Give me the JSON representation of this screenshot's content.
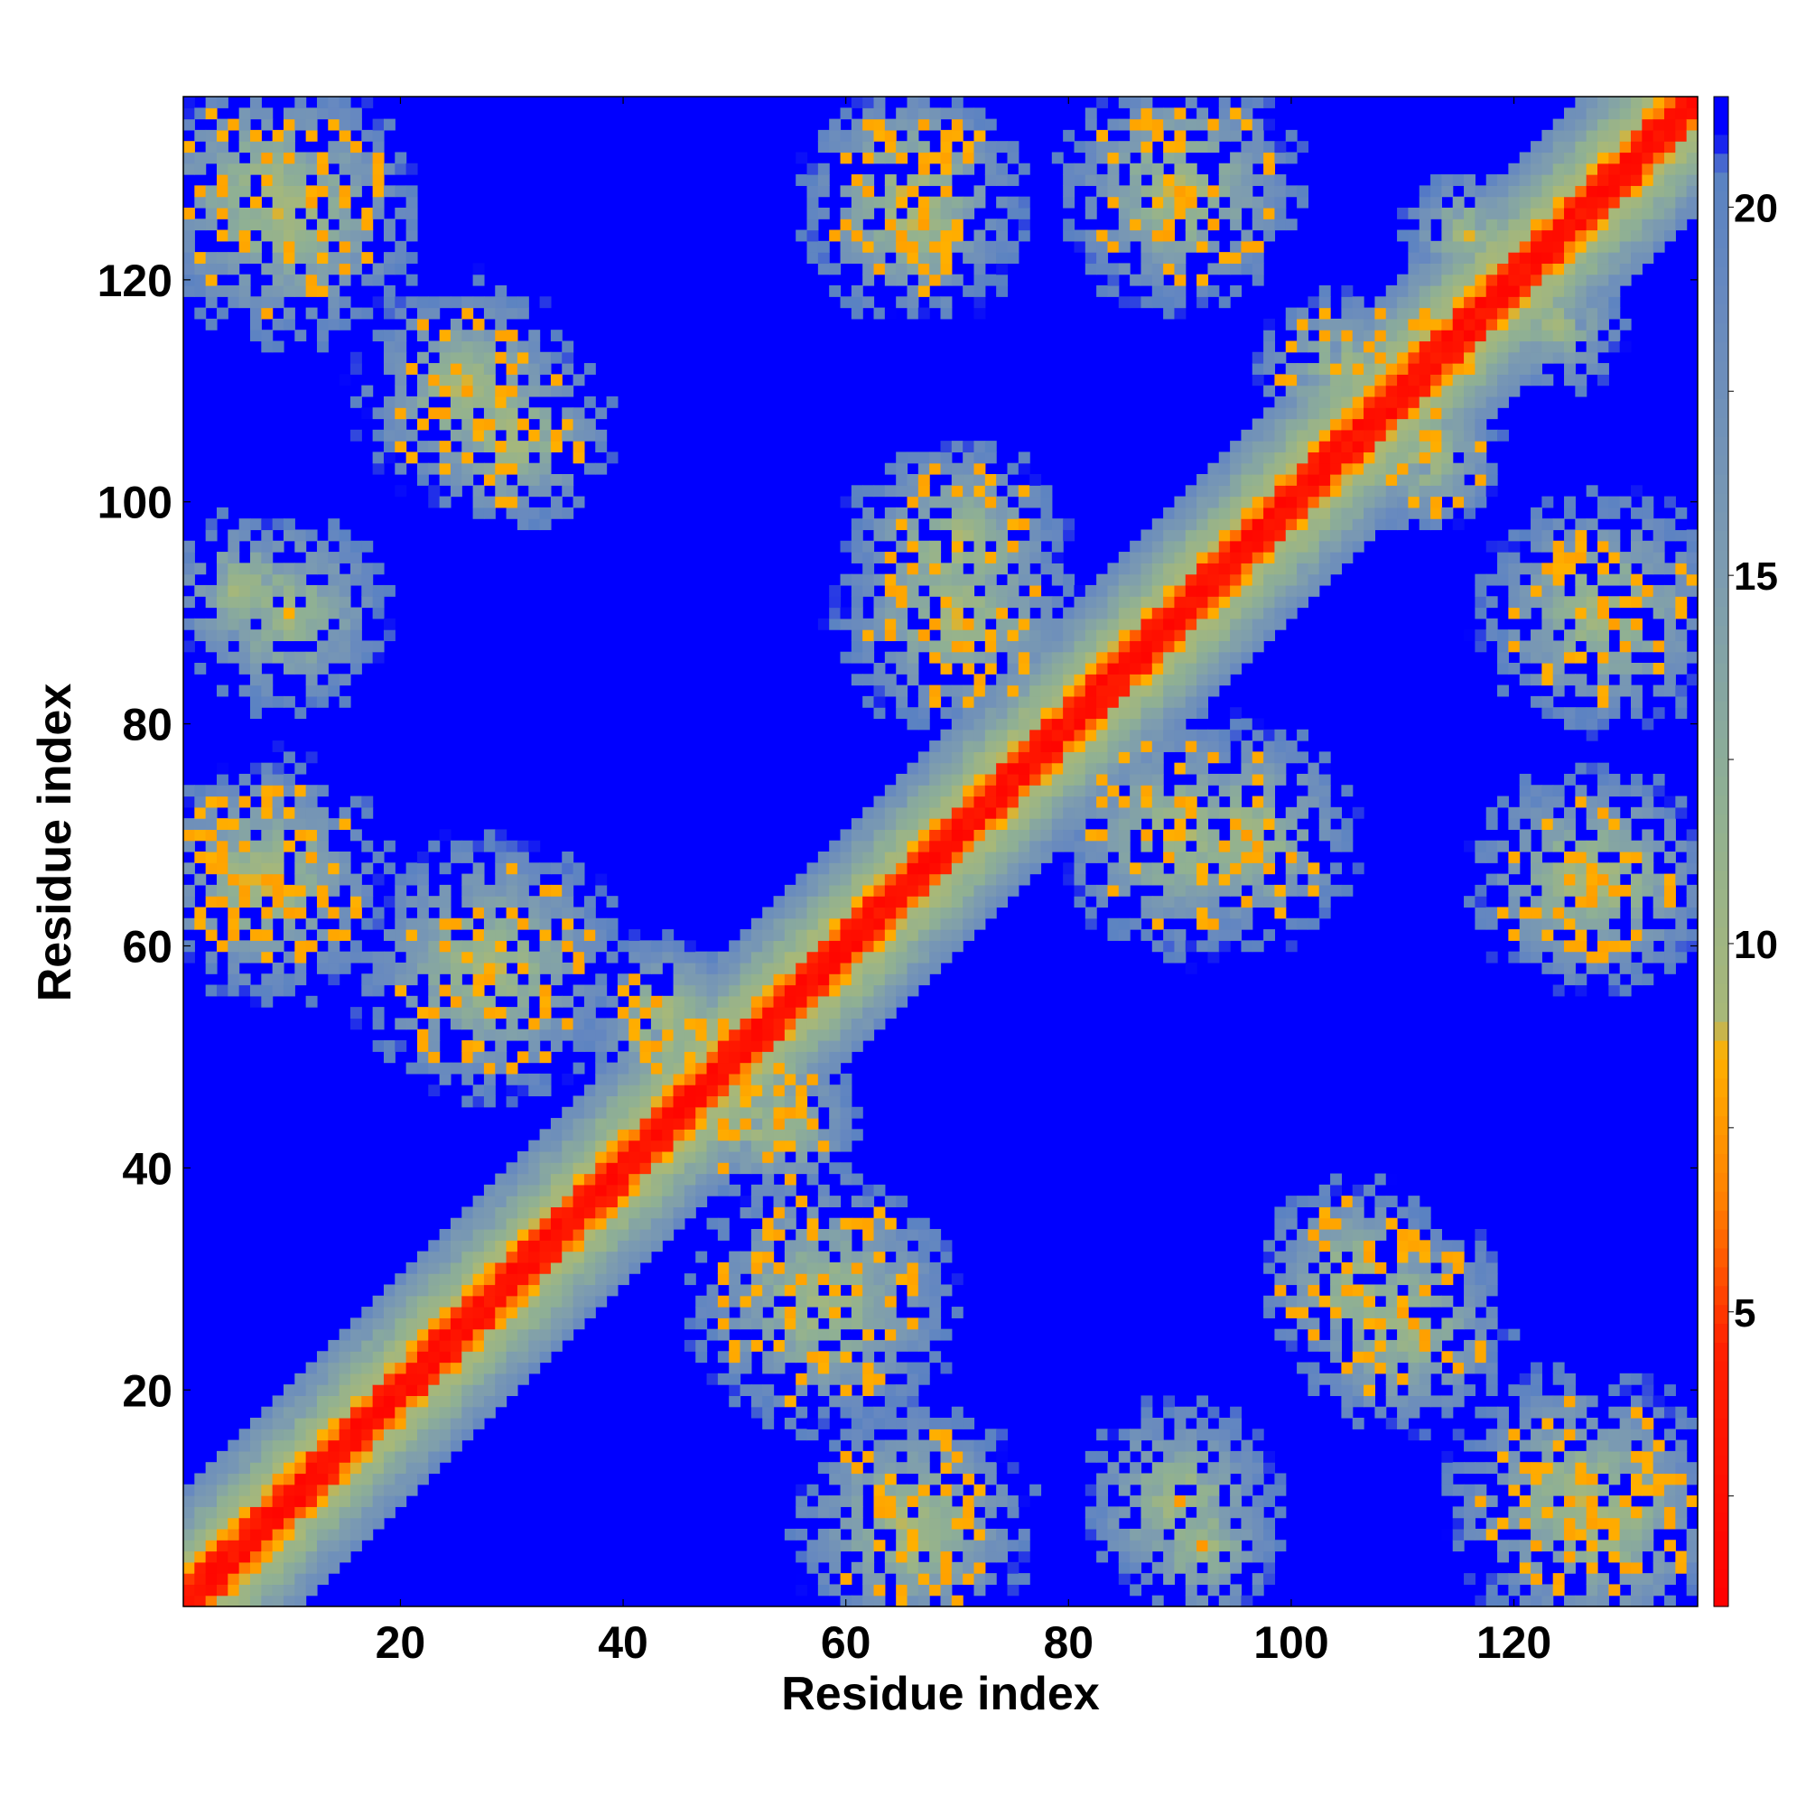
{
  "chart_data": {
    "type": "heatmap",
    "title": "",
    "xlabel": "Residue index",
    "ylabel": "Residue index",
    "xlim": [
      1,
      136
    ],
    "ylim": [
      1,
      136
    ],
    "x_ticks": [
      20,
      40,
      60,
      80,
      100,
      120
    ],
    "y_ticks": [
      20,
      40,
      60,
      80,
      100,
      120
    ],
    "colorbar": {
      "range": [
        1,
        21.5
      ],
      "ticks": [
        5,
        10,
        15,
        20
      ],
      "tick_labels": [
        "5",
        "10",
        "15",
        "20"
      ],
      "color_stops": [
        {
          "value": 1,
          "color": "#ff0000"
        },
        {
          "value": 4.5,
          "color": "#ff2000"
        },
        {
          "value": 6.5,
          "color": "#ff7f00"
        },
        {
          "value": 8.5,
          "color": "#ffb000"
        },
        {
          "value": 9.0,
          "color": "#a8b878"
        },
        {
          "value": 12.0,
          "color": "#8fb094"
        },
        {
          "value": 15.0,
          "color": "#7d9cb0"
        },
        {
          "value": 19.0,
          "color": "#6688c0"
        },
        {
          "value": 20.5,
          "color": "#5a82c2"
        },
        {
          "value": 21.0,
          "color": "#0000ff"
        }
      ],
      "max_color": "#0000ff"
    },
    "clusters": [
      {
        "x": 8,
        "y": 128,
        "radius": 11,
        "weight": 0.85
      },
      {
        "x": 26,
        "y": 110,
        "radius": 10,
        "weight": 0.7
      },
      {
        "x": 6,
        "y": 92,
        "radius": 7,
        "weight": 0.45
      },
      {
        "x": 6,
        "y": 66,
        "radius": 8,
        "weight": 0.7
      },
      {
        "x": 28,
        "y": 58,
        "radius": 11,
        "weight": 0.75
      },
      {
        "x": 44,
        "y": 52,
        "radius": 7,
        "weight": 0.9
      },
      {
        "x": 54,
        "y": 44,
        "radius": 7,
        "weight": 0.9
      },
      {
        "x": 58,
        "y": 28,
        "radius": 12,
        "weight": 0.75
      },
      {
        "x": 66,
        "y": 8,
        "radius": 11,
        "weight": 0.8
      },
      {
        "x": 90,
        "y": 10,
        "radius": 9,
        "weight": 0.55
      },
      {
        "x": 106,
        "y": 30,
        "radius": 9,
        "weight": 0.75
      },
      {
        "x": 126,
        "y": 10,
        "radius": 12,
        "weight": 0.85
      },
      {
        "x": 70,
        "y": 96,
        "radius": 10,
        "weight": 0.7
      },
      {
        "x": 90,
        "y": 70,
        "radius": 11,
        "weight": 0.75
      },
      {
        "x": 66,
        "y": 126,
        "radius": 10,
        "weight": 0.75
      },
      {
        "x": 90,
        "y": 128,
        "radius": 10,
        "weight": 0.85
      },
      {
        "x": 110,
        "y": 112,
        "radius": 7,
        "weight": 0.85
      },
      {
        "x": 112,
        "y": 104,
        "radius": 7,
        "weight": 0.85
      },
      {
        "x": 128,
        "y": 90,
        "radius": 11,
        "weight": 0.85
      },
      {
        "x": 128,
        "y": 66,
        "radius": 10,
        "weight": 0.8
      },
      {
        "x": 118,
        "y": 122,
        "radius": 6,
        "weight": 0.6
      },
      {
        "x": 124,
        "y": 116,
        "radius": 6,
        "weight": 0.6
      }
    ],
    "diagonal": {
      "core_halfwidth": 2.5,
      "band_halfwidth": 10
    }
  }
}
